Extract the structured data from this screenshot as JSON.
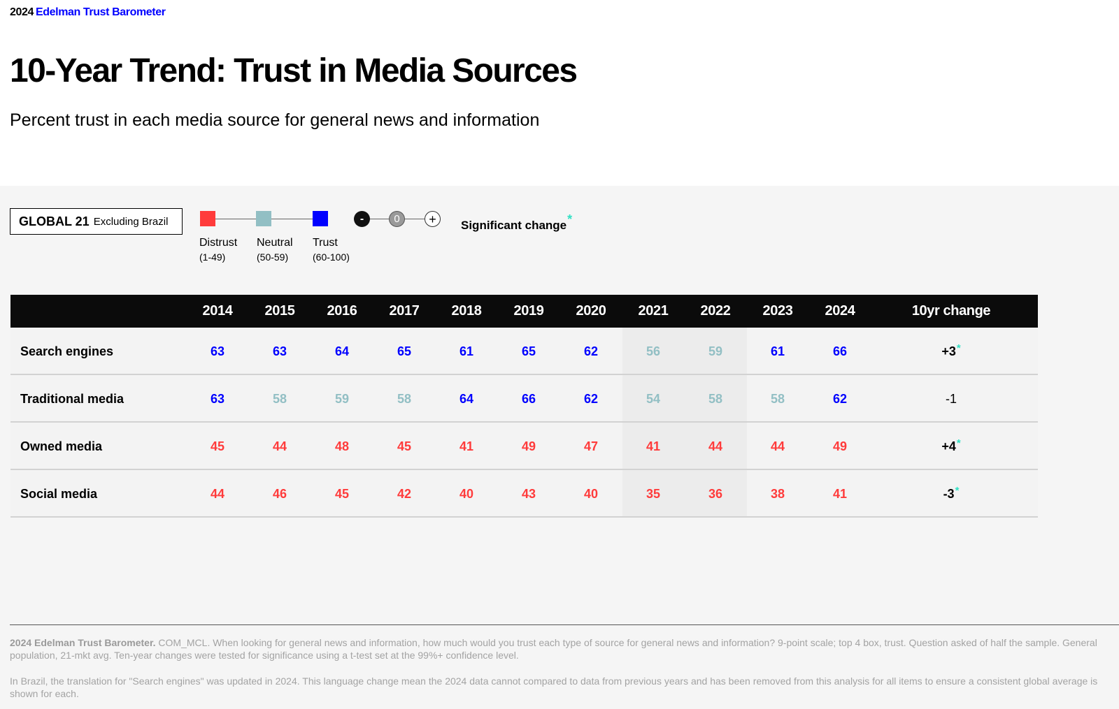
{
  "header": {
    "brand_year": "2024",
    "brand_name": "Edelman Trust Barometer",
    "title": "10-Year Trend: Trust in Media Sources",
    "subtitle": "Percent trust in each media source for general news and information"
  },
  "legend": {
    "scope_main": "GLOBAL 21",
    "scope_sub": "Excluding Brazil",
    "categories": [
      {
        "label": "Distrust",
        "range": "(1-49)",
        "color": "#ff3b3b"
      },
      {
        "label": "Neutral",
        "range": "(50-59)",
        "color": "#92bfc4"
      },
      {
        "label": "Trust",
        "range": "(60-100)",
        "color": "#0000ff"
      }
    ],
    "change_symbols": {
      "minus": "-",
      "zero": "0",
      "plus": "+"
    },
    "significant_label": "Significant change",
    "star": "*"
  },
  "chart_data": {
    "type": "table",
    "title": "10-Year Trend: Trust in Media Sources",
    "years": [
      "2014",
      "2015",
      "2016",
      "2017",
      "2018",
      "2019",
      "2020",
      "2021",
      "2022",
      "2023",
      "2024"
    ],
    "change_header": "10yr change",
    "rows": [
      {
        "label": "Search engines",
        "values": [
          63,
          63,
          64,
          65,
          61,
          65,
          62,
          56,
          59,
          61,
          66
        ],
        "change": "+3",
        "significant": true
      },
      {
        "label": "Traditional media",
        "values": [
          63,
          58,
          59,
          58,
          64,
          66,
          62,
          54,
          58,
          58,
          62
        ],
        "change": "-1",
        "significant": false
      },
      {
        "label": "Owned media",
        "values": [
          45,
          44,
          48,
          45,
          41,
          49,
          47,
          41,
          44,
          44,
          49
        ],
        "change": "+4",
        "significant": true
      },
      {
        "label": "Social media",
        "values": [
          44,
          46,
          45,
          42,
          40,
          43,
          40,
          35,
          36,
          38,
          41
        ],
        "change": "-3",
        "significant": true
      }
    ],
    "color_thresholds": {
      "distrust_max": 49,
      "neutral_max": 59
    },
    "colors": {
      "distrust": "#ff3b3b",
      "neutral": "#92bfc4",
      "trust": "#0000ff"
    }
  },
  "footnotes": {
    "source_bold": "2024 Edelman Trust Barometer.",
    "source_text": " COM_MCL. When looking for general news and information, how much would you trust each type of source for general news and information? 9-point scale; top 4 box, trust. Question asked of half the sample. General population, 21-mkt avg. Ten-year changes were tested for significance using a t-test set at the 99%+ confidence level.",
    "note": "In Brazil, the translation for \"Search engines\" was updated in 2024. This language change mean the 2024 data cannot compared to data from previous years and has been removed from this analysis for all items to ensure a consistent global average is shown for each."
  }
}
